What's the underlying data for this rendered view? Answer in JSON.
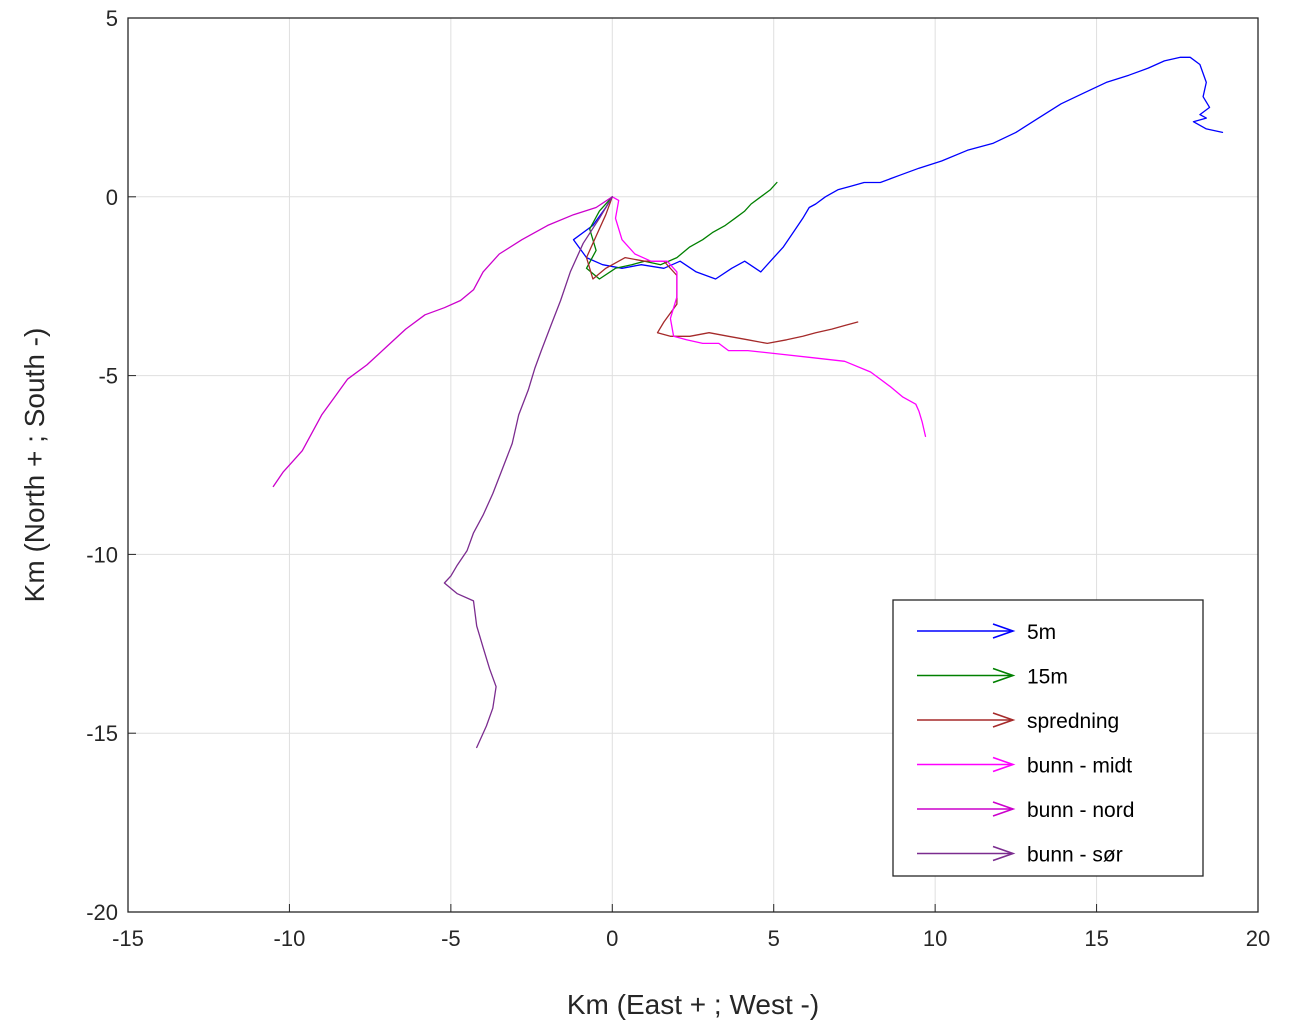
{
  "chart_data": {
    "type": "line",
    "title": "",
    "xlabel": "Km (East + ; West -)",
    "ylabel": "Km (North + ; South -)",
    "xlim": [
      -15,
      20
    ],
    "ylim": [
      -20,
      5
    ],
    "xticks": [
      -15,
      -10,
      -5,
      0,
      5,
      10,
      15,
      20
    ],
    "yticks": [
      5,
      0,
      -5,
      -10,
      -15,
      -20
    ],
    "grid": true,
    "legend_position": "bottom-right",
    "series": [
      {
        "name": "5m",
        "color": "#0000ff",
        "x": [
          0,
          -0.2,
          -0.6,
          -1.2,
          -0.8,
          -0.3,
          0.3,
          0.9,
          1.6,
          2.1,
          2.6,
          3.2,
          3.7,
          4.1,
          4.6,
          5.0,
          5.3,
          5.6,
          5.9,
          6.1,
          6.3,
          6.6,
          7.0,
          7.4,
          7.8,
          8.3,
          8.9,
          9.5,
          10.2,
          11.0,
          11.8,
          12.5,
          13.2,
          13.9,
          14.6,
          15.3,
          16.0,
          16.6,
          17.1,
          17.6,
          17.9,
          18.2,
          18.4,
          18.3,
          18.5,
          18.2,
          18.4,
          18.0,
          18.4,
          18.9
        ],
        "y": [
          0,
          -0.3,
          -0.8,
          -1.2,
          -1.7,
          -1.9,
          -2.0,
          -1.9,
          -2.0,
          -1.8,
          -2.1,
          -2.3,
          -2.0,
          -1.8,
          -2.1,
          -1.7,
          -1.4,
          -1.0,
          -0.6,
          -0.3,
          -0.2,
          0.0,
          0.2,
          0.3,
          0.4,
          0.4,
          0.6,
          0.8,
          1.0,
          1.3,
          1.5,
          1.8,
          2.2,
          2.6,
          2.9,
          3.2,
          3.4,
          3.6,
          3.8,
          3.9,
          3.9,
          3.7,
          3.2,
          2.8,
          2.5,
          2.3,
          2.2,
          2.1,
          1.9,
          1.8
        ]
      },
      {
        "name": "15m",
        "color": "#008000",
        "x": [
          0,
          -0.4,
          -0.7,
          -0.5,
          -0.8,
          -0.4,
          0.1,
          0.6,
          1.0,
          1.5,
          2.0,
          2.4,
          2.8,
          3.1,
          3.5,
          3.8,
          4.1,
          4.3,
          4.6,
          4.9,
          5.1
        ],
        "y": [
          0,
          -0.4,
          -0.9,
          -1.5,
          -2.0,
          -2.3,
          -2.0,
          -1.9,
          -1.8,
          -1.9,
          -1.7,
          -1.4,
          -1.2,
          -1.0,
          -0.8,
          -0.6,
          -0.4,
          -0.2,
          0.0,
          0.2,
          0.4
        ]
      },
      {
        "name": "spredning",
        "color": "#a52a2a",
        "x": [
          0,
          -0.2,
          -0.5,
          -0.8,
          -0.6,
          -0.2,
          0.4,
          1.0,
          1.6,
          2.0,
          2.0,
          1.6,
          1.4,
          1.8,
          2.4,
          3.0,
          3.6,
          4.2,
          4.8,
          5.4,
          5.9,
          6.3,
          6.8,
          7.2,
          7.6
        ],
        "y": [
          0,
          -0.5,
          -1.1,
          -1.7,
          -2.3,
          -2.0,
          -1.7,
          -1.8,
          -1.8,
          -2.2,
          -3.0,
          -3.5,
          -3.8,
          -3.9,
          -3.9,
          -3.8,
          -3.9,
          -4.0,
          -4.1,
          -4.0,
          -3.9,
          -3.8,
          -3.7,
          -3.6,
          -3.5
        ]
      },
      {
        "name": "bunn - midt",
        "color": "#ff00ff",
        "x": [
          0,
          0.2,
          0.1,
          0.3,
          0.7,
          1.2,
          1.7,
          2.0,
          2.0,
          1.8,
          1.9,
          2.3,
          2.8,
          3.3,
          3.6,
          4.2,
          5.2,
          6.2,
          7.2,
          8.0,
          8.6,
          9.0,
          9.4,
          9.5,
          9.6,
          9.7
        ],
        "y": [
          0,
          -0.1,
          -0.6,
          -1.2,
          -1.6,
          -1.8,
          -1.8,
          -2.1,
          -2.8,
          -3.4,
          -3.9,
          -4.0,
          -4.1,
          -4.1,
          -4.3,
          -4.3,
          -4.4,
          -4.5,
          -4.6,
          -4.9,
          -5.3,
          -5.6,
          -5.8,
          -6.0,
          -6.3,
          -6.7
        ]
      },
      {
        "name": "bunn - nord",
        "color": "#cc00cc",
        "x": [
          0,
          -0.5,
          -1.2,
          -2.0,
          -2.8,
          -3.5,
          -4.0,
          -4.3,
          -4.7,
          -5.2,
          -5.8,
          -6.4,
          -7.0,
          -7.6,
          -8.2,
          -8.6,
          -9.0,
          -9.3,
          -9.6,
          -9.9,
          -10.2,
          -10.5
        ],
        "y": [
          0,
          -0.3,
          -0.5,
          -0.8,
          -1.2,
          -1.6,
          -2.1,
          -2.6,
          -2.9,
          -3.1,
          -3.3,
          -3.7,
          -4.2,
          -4.7,
          -5.1,
          -5.6,
          -6.1,
          -6.6,
          -7.1,
          -7.4,
          -7.7,
          -8.1
        ]
      },
      {
        "name": "bunn - sør",
        "color": "#7b2c8f",
        "x": [
          0,
          -0.4,
          -0.9,
          -1.3,
          -1.6,
          -1.9,
          -2.2,
          -2.4,
          -2.6,
          -2.9,
          -3.1,
          -3.4,
          -3.7,
          -4.0,
          -4.3,
          -4.5,
          -4.8,
          -5.0,
          -5.2,
          -4.8,
          -4.3,
          -4.2,
          -4.0,
          -3.8,
          -3.6,
          -3.7,
          -3.9,
          -4.2
        ],
        "y": [
          0,
          -0.6,
          -1.3,
          -2.1,
          -2.9,
          -3.6,
          -4.3,
          -4.8,
          -5.4,
          -6.1,
          -6.9,
          -7.6,
          -8.3,
          -8.9,
          -9.4,
          -9.9,
          -10.3,
          -10.6,
          -10.8,
          -11.1,
          -11.3,
          -12.0,
          -12.6,
          -13.2,
          -13.7,
          -14.3,
          -14.8,
          -15.4
        ]
      }
    ]
  }
}
